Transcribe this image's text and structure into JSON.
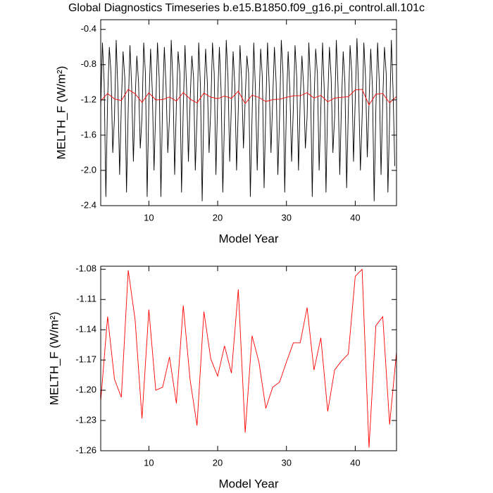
{
  "chart_data": [
    {
      "type": "line",
      "title": "Global Diagnostics Timeseries b.e15.B1850.f09_g16.pi_control.all.101c",
      "x_label": "Model Year",
      "y_label": "MELTH_F (W/m²)",
      "xlim": [
        3,
        46
      ],
      "xticks": [
        10,
        20,
        30,
        40
      ],
      "ylim": [
        -2.4,
        -0.29
      ],
      "yticks": [
        -0.4,
        {
          "value": -0.8,
          "label": "-0.8"
        },
        -1.2,
        -1.6,
        {
          "value": -2.0,
          "label": "-2.0"
        },
        -2.4
      ],
      "series": [
        {
          "color": "#000000",
          "x": [
            3,
            3.25,
            3.5,
            3.75,
            4,
            4.25,
            4.5,
            4.75,
            5,
            5.25,
            5.5,
            5.75,
            6,
            6.25,
            6.5,
            6.75,
            7,
            7.25,
            7.5,
            7.75,
            8,
            8.25,
            8.5,
            8.75,
            9,
            9.25,
            9.5,
            9.75,
            10,
            10.25,
            10.5,
            10.75,
            11,
            11.25,
            11.5,
            11.75,
            12,
            12.25,
            12.5,
            12.75,
            13,
            13.25,
            13.5,
            13.75,
            14,
            14.25,
            14.5,
            14.75,
            15,
            15.25,
            15.5,
            15.75,
            16,
            16.25,
            16.5,
            16.75,
            17,
            17.25,
            17.5,
            17.75,
            18,
            18.25,
            18.5,
            18.75,
            19,
            19.25,
            19.5,
            19.75,
            20,
            20.25,
            20.5,
            20.75,
            21,
            21.25,
            21.5,
            21.75,
            22,
            22.25,
            22.5,
            22.75,
            23,
            23.25,
            23.5,
            23.75,
            24,
            24.25,
            24.5,
            24.75,
            25,
            25.25,
            25.5,
            25.75,
            26,
            26.25,
            26.5,
            26.75,
            27,
            27.25,
            27.5,
            27.75,
            28,
            28.25,
            28.5,
            28.75,
            29,
            29.25,
            29.5,
            29.75,
            30,
            30.25,
            30.5,
            30.75,
            31,
            31.25,
            31.5,
            31.75,
            32,
            32.25,
            32.5,
            32.75,
            33,
            33.25,
            33.5,
            33.75,
            34,
            34.25,
            34.5,
            34.75,
            35,
            35.25,
            35.5,
            35.75,
            36,
            36.25,
            36.5,
            36.75,
            37,
            37.25,
            37.5,
            37.75,
            38,
            38.25,
            38.5,
            38.75,
            39,
            39.25,
            39.5,
            39.75,
            40,
            40.25,
            40.5,
            40.75,
            41,
            41.25,
            41.5,
            41.75,
            42,
            42.25,
            42.5,
            42.75,
            43,
            43.25,
            43.5,
            43.75,
            44,
            44.25,
            44.5,
            44.75,
            45,
            45.25,
            45.5,
            45.75
          ],
          "values": [
            -1.3,
            -0.55,
            -1.0,
            -2.3,
            -1.2,
            -0.6,
            -0.9,
            -1.8,
            -1.4,
            -0.52,
            -1.1,
            -2.05,
            -1.25,
            -0.65,
            -0.95,
            -2.25,
            -1.3,
            -0.58,
            -1.05,
            -1.9,
            -1.2,
            -0.7,
            -1.0,
            -1.75,
            -1.4,
            -0.55,
            -0.9,
            -2.3,
            -1.25,
            -0.62,
            -1.1,
            -2.0,
            -1.3,
            -0.55,
            -0.95,
            -2.3,
            -1.2,
            -0.6,
            -1.05,
            -1.8,
            -1.4,
            -0.52,
            -1.0,
            -2.05,
            -1.25,
            -0.65,
            -0.9,
            -2.25,
            -1.3,
            -0.58,
            -1.1,
            -1.9,
            -1.2,
            -0.7,
            -0.95,
            -2.0,
            -1.4,
            -0.55,
            -1.05,
            -2.35,
            -1.25,
            -0.62,
            -1.0,
            -1.8,
            -1.3,
            -0.55,
            -0.9,
            -2.05,
            -1.2,
            -0.6,
            -1.1,
            -2.25,
            -1.4,
            -0.52,
            -0.95,
            -1.9,
            -1.25,
            -0.65,
            -1.05,
            -2.0,
            -1.3,
            -0.58,
            -1.0,
            -1.75,
            -1.2,
            -0.7,
            -0.9,
            -2.3,
            -1.4,
            -0.55,
            -1.1,
            -2.0,
            -1.25,
            -0.62,
            -0.95,
            -2.2,
            -1.3,
            -0.55,
            -1.05,
            -1.8,
            -1.2,
            -0.6,
            -1.0,
            -2.05,
            -1.4,
            -0.52,
            -0.9,
            -2.25,
            -1.25,
            -0.65,
            -1.1,
            -1.9,
            -1.3,
            -0.58,
            -0.95,
            -2.0,
            -1.2,
            -0.7,
            -1.05,
            -1.75,
            -1.4,
            -0.55,
            -1.0,
            -2.3,
            -1.25,
            -0.62,
            -0.9,
            -2.0,
            -1.3,
            -0.55,
            -1.1,
            -2.25,
            -1.2,
            -0.6,
            -0.95,
            -1.8,
            -1.4,
            -0.52,
            -1.05,
            -2.05,
            -1.25,
            -0.65,
            -1.0,
            -2.2,
            -1.3,
            -0.58,
            -0.9,
            -1.9,
            -1.2,
            -0.5,
            -1.1,
            -2.0,
            -1.4,
            -0.55,
            -0.95,
            -1.85,
            -1.25,
            -0.62,
            -1.05,
            -2.35,
            -1.3,
            -0.55,
            -1.0,
            -2.05,
            -1.2,
            -0.6,
            -0.9,
            -2.25,
            -1.4,
            -0.52,
            -1.1,
            -1.95
          ]
        },
        {
          "color": "#ff0000",
          "x": [
            3,
            4,
            5,
            6,
            7,
            8,
            9,
            10,
            11,
            12,
            13,
            14,
            15,
            16,
            17,
            18,
            19,
            20,
            21,
            22,
            23,
            24,
            25,
            26,
            27,
            28,
            29,
            30,
            31,
            32,
            33,
            34,
            35,
            36,
            37,
            38,
            39,
            40,
            41,
            42,
            43,
            44,
            45,
            46
          ],
          "values": [
            -1.211,
            -1.127,
            -1.189,
            -1.207,
            -1.081,
            -1.13,
            -1.228,
            -1.12,
            -1.2,
            -1.197,
            -1.167,
            -1.213,
            -1.116,
            -1.19,
            -1.235,
            -1.122,
            -1.169,
            -1.186,
            -1.156,
            -1.183,
            -1.1,
            -1.242,
            -1.146,
            -1.172,
            -1.218,
            -1.197,
            -1.192,
            -1.172,
            -1.153,
            -1.153,
            -1.118,
            -1.18,
            -1.148,
            -1.221,
            -1.18,
            -1.171,
            -1.164,
            -1.087,
            -1.08,
            -1.257,
            -1.136,
            -1.127,
            -1.234,
            -1.162
          ]
        }
      ]
    },
    {
      "type": "line",
      "x_label": "Model Year",
      "y_label": "MELTH_F (W/m²)",
      "xlim": [
        3,
        46
      ],
      "xticks": [
        10,
        20,
        30,
        40
      ],
      "ylim": [
        -1.26,
        -1.077
      ],
      "yticks": [
        -1.08,
        -1.11,
        -1.14,
        -1.17,
        {
          "value": -1.2,
          "label": "-1.20"
        },
        -1.23,
        -1.26
      ],
      "series": [
        {
          "color": "#ff0000",
          "x": [
            3,
            4,
            5,
            6,
            7,
            8,
            9,
            10,
            11,
            12,
            13,
            14,
            15,
            16,
            17,
            18,
            19,
            20,
            21,
            22,
            23,
            24,
            25,
            26,
            27,
            28,
            29,
            30,
            31,
            32,
            33,
            34,
            35,
            36,
            37,
            38,
            39,
            40,
            41,
            42,
            43,
            44,
            45,
            46
          ],
          "values": [
            -1.211,
            -1.127,
            -1.189,
            -1.207,
            -1.081,
            -1.13,
            -1.228,
            -1.12,
            -1.2,
            -1.197,
            -1.167,
            -1.213,
            -1.116,
            -1.19,
            -1.235,
            -1.122,
            -1.169,
            -1.186,
            -1.156,
            -1.183,
            -1.1,
            -1.242,
            -1.146,
            -1.172,
            -1.218,
            -1.197,
            -1.192,
            -1.172,
            -1.153,
            -1.153,
            -1.118,
            -1.18,
            -1.148,
            -1.221,
            -1.18,
            -1.171,
            -1.164,
            -1.087,
            -1.08,
            -1.257,
            -1.136,
            -1.127,
            -1.234,
            -1.162
          ]
        }
      ]
    }
  ]
}
